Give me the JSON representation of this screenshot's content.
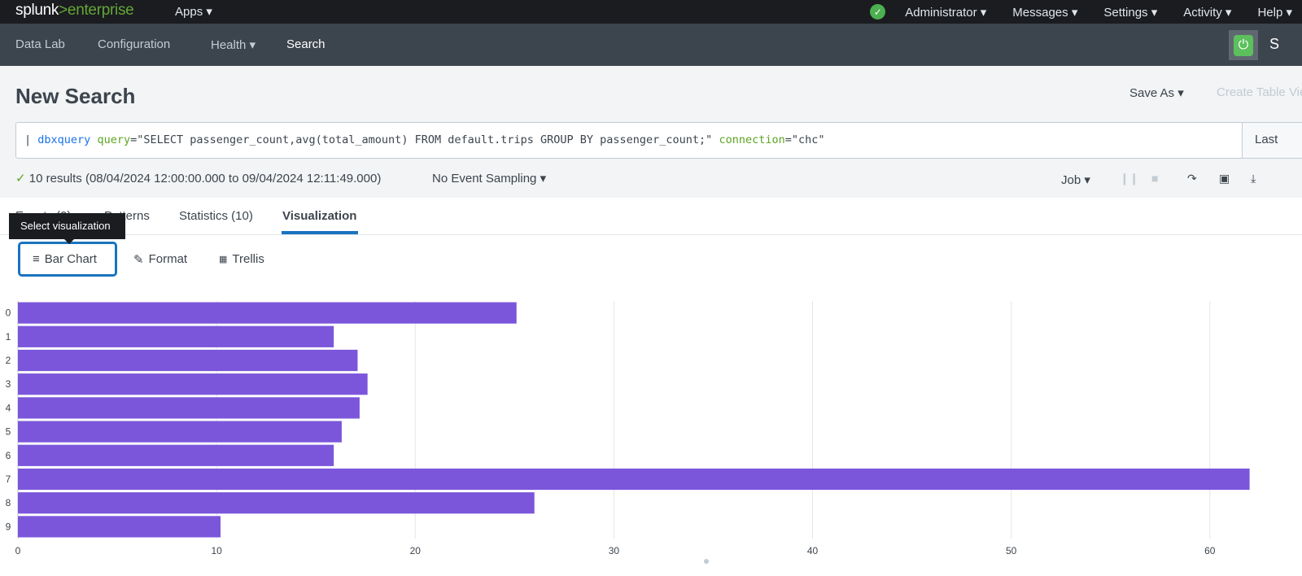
{
  "topbar": {
    "logo": "splunk>enterprise",
    "apps": "Apps ▾",
    "status_icon": "check-circle-icon",
    "menu": [
      "Administrator ▾",
      "Messages ▾",
      "Settings ▾",
      "Activity ▾",
      "Help ▾"
    ]
  },
  "nav": {
    "items": [
      "Data Lab",
      "Configuration",
      "Health ▾",
      "Search"
    ],
    "active": "Search",
    "app_letter": "S"
  },
  "header": {
    "title": "New Search",
    "save_as": "Save As ▾",
    "create_table": "Create Table View"
  },
  "search": {
    "pipe": "| ",
    "cmd": "dbxquery",
    "arg1": "query",
    "val1": "=\"SELECT passenger_count,avg(total_amount) FROM default.trips GROUP BY passenger_count;\" ",
    "arg2": "connection",
    "val2": "=\"chc\"",
    "time_picker": "Last"
  },
  "status": {
    "check": "✓",
    "results": "10 results (08/04/2024 12:00:00.000 to 09/04/2024 12:11:49.000)",
    "sampling": "No Event Sampling ▾",
    "job": "Job ▾"
  },
  "tabs": [
    "Events (0)",
    "Patterns",
    "Statistics (10)",
    "Visualization"
  ],
  "tooltip": "Select visualization",
  "viz_controls": {
    "chart_type": "Bar Chart",
    "format": "Format",
    "trellis": "Trellis"
  },
  "colors": {
    "bar": "#7b56db",
    "accent": "#1a73bf"
  },
  "chart_data": {
    "type": "bar",
    "orientation": "horizontal",
    "categories": [
      "0",
      "1",
      "2",
      "3",
      "4",
      "5",
      "6",
      "7",
      "8",
      "9"
    ],
    "values": [
      25.1,
      15.9,
      17.1,
      17.6,
      17.2,
      16.3,
      15.9,
      62.0,
      26.0,
      10.2
    ],
    "xlim": [
      0,
      63
    ],
    "xticks": [
      "0",
      "10",
      "20",
      "30",
      "40",
      "50",
      "60"
    ],
    "grid": true,
    "legend": "none"
  }
}
